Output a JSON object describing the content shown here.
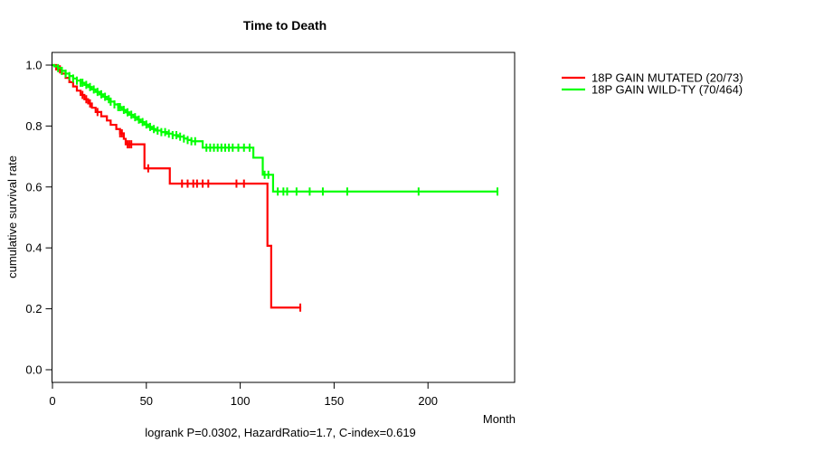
{
  "chart_data": {
    "type": "line",
    "subtype": "kaplan-meier-survival-step",
    "title": "Time to Death",
    "xlabel": "Month",
    "ylabel": "cumulative survival rate",
    "annotation": "logrank P=0.0302, HazardRatio=1.7, C-index=0.619",
    "xlim": [
      0,
      246
    ],
    "ylim": [
      0,
      1
    ],
    "x_ticks": [
      0,
      50,
      100,
      150,
      200
    ],
    "y_ticks": [
      0.0,
      0.2,
      0.4,
      0.6,
      0.8,
      1.0
    ],
    "grid": false,
    "legend_position": "outside-right",
    "series": [
      {
        "name": "18P GAIN MUTATED (20/73)",
        "color": "#ff0000",
        "steps": [
          [
            0,
            1.0
          ],
          [
            2,
            0.986
          ],
          [
            5,
            0.972
          ],
          [
            7,
            0.958
          ],
          [
            9,
            0.944
          ],
          [
            11,
            0.93
          ],
          [
            13,
            0.916
          ],
          [
            15,
            0.902
          ],
          [
            17,
            0.888
          ],
          [
            19,
            0.874
          ],
          [
            21,
            0.86
          ],
          [
            23,
            0.846
          ],
          [
            26,
            0.832
          ],
          [
            29,
            0.818
          ],
          [
            31,
            0.804
          ],
          [
            34,
            0.79
          ],
          [
            36,
            0.776
          ],
          [
            38,
            0.758
          ],
          [
            39,
            0.74
          ],
          [
            49,
            0.661
          ],
          [
            62.5,
            0.611
          ],
          [
            114.5,
            0.407
          ],
          [
            116.5,
            0.204
          ]
        ],
        "end_month": 132.5,
        "censor_months": [
          4,
          16,
          18,
          20,
          24,
          36,
          37,
          40,
          41,
          42,
          51,
          69,
          72,
          75,
          77,
          80,
          83,
          98,
          102,
          132
        ]
      },
      {
        "name": "18P GAIN WILD-TY (70/464)",
        "color": "#00ff00",
        "steps": [
          [
            0,
            1.0
          ],
          [
            1,
            0.996
          ],
          [
            3,
            0.99
          ],
          [
            5,
            0.981
          ],
          [
            7,
            0.972
          ],
          [
            9,
            0.964
          ],
          [
            11,
            0.956
          ],
          [
            13,
            0.949
          ],
          [
            15,
            0.942
          ],
          [
            17,
            0.935
          ],
          [
            19,
            0.928
          ],
          [
            21,
            0.92
          ],
          [
            23,
            0.912
          ],
          [
            25,
            0.904
          ],
          [
            27,
            0.896
          ],
          [
            29,
            0.888
          ],
          [
            31,
            0.88
          ],
          [
            33,
            0.871
          ],
          [
            35,
            0.862
          ],
          [
            37,
            0.853
          ],
          [
            39,
            0.845
          ],
          [
            41,
            0.837
          ],
          [
            43,
            0.829
          ],
          [
            45,
            0.821
          ],
          [
            47,
            0.813
          ],
          [
            49,
            0.805
          ],
          [
            51,
            0.797
          ],
          [
            53,
            0.79
          ],
          [
            55,
            0.785
          ],
          [
            58,
            0.78
          ],
          [
            61,
            0.775
          ],
          [
            64,
            0.77
          ],
          [
            67,
            0.765
          ],
          [
            70,
            0.759
          ],
          [
            72,
            0.754
          ],
          [
            74,
            0.75
          ],
          [
            80,
            0.729
          ],
          [
            107,
            0.696
          ],
          [
            112,
            0.64
          ],
          [
            117.5,
            0.585
          ]
        ],
        "end_month": 237.5,
        "censor_months": [
          3,
          5,
          7,
          9,
          11,
          13,
          15,
          16,
          18,
          20,
          22,
          24,
          26,
          28,
          30,
          31,
          33,
          35,
          36,
          38,
          40,
          42,
          44,
          46,
          48,
          50,
          52,
          54,
          56,
          58,
          60,
          62,
          64,
          66,
          68,
          70,
          72,
          74,
          76,
          82,
          84,
          86,
          88,
          90,
          92,
          94,
          96,
          99,
          102,
          105,
          113,
          115,
          120,
          123,
          125,
          130,
          137,
          144,
          157,
          195,
          237
        ]
      }
    ]
  }
}
